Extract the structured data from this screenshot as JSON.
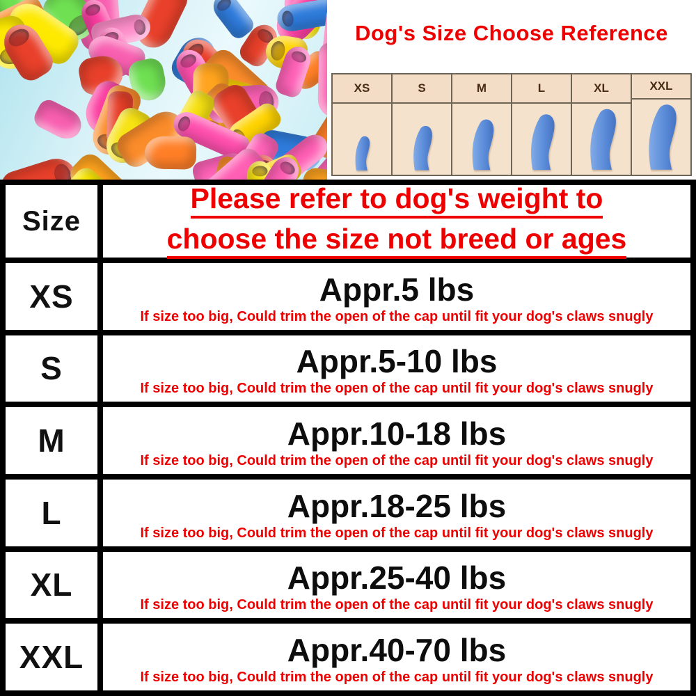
{
  "title": "Dog's Size Choose Reference",
  "size_chart": {
    "labels": [
      "XS",
      "S",
      "M",
      "L",
      "XL",
      "XXL"
    ]
  },
  "table": {
    "header": {
      "size_label": "Size",
      "note_line1": "Please refer to dog's weight to",
      "note_line2": "choose the size not breed or ages"
    },
    "trim_note": "If size too big, Could trim the open of the cap until fit your dog's claws snugly",
    "rows": [
      {
        "size": "XS",
        "weight": "Appr.5 lbs"
      },
      {
        "size": "S",
        "weight": "Appr.5-10 lbs"
      },
      {
        "size": "M",
        "weight": "Appr.10-18 lbs"
      },
      {
        "size": "L",
        "weight": "Appr.18-25 lbs"
      },
      {
        "size": "XL",
        "weight": "Appr.25-40 lbs"
      },
      {
        "size": "XXL",
        "weight": "Appr.40-70 lbs"
      }
    ]
  },
  "colors": {
    "accent_red": "#ee0000",
    "cap_blue": "#5b8cd9",
    "chart_bg": "#f5e2cd",
    "chart_text": "#4a2c15"
  },
  "photo": {
    "cap_colors": [
      "#ff5fb4",
      "#fb3da0",
      "#ff8fcb",
      "#f85fb0",
      "#ff4fae",
      "#fde900",
      "#f7e212",
      "#ffa41e",
      "#ff7f27",
      "#fb8c2a",
      "#6fe052",
      "#2e7bdb",
      "#e8402a",
      "#ff62b8",
      "#ffd400"
    ]
  }
}
